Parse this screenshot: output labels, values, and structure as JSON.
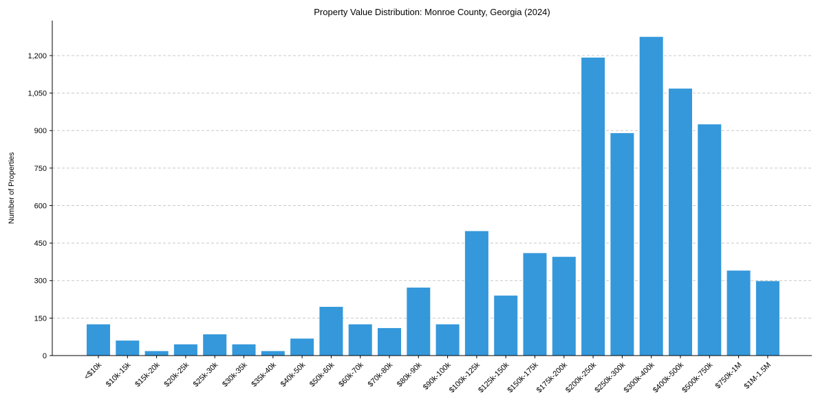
{
  "chart_data": {
    "type": "bar",
    "title": "Property Value Distribution: Monroe County, Georgia (2024)",
    "xlabel": "",
    "ylabel": "Number of Properties",
    "ylim": [
      0,
      1340
    ],
    "yticks": [
      0,
      150,
      300,
      450,
      600,
      750,
      900,
      1050,
      1200
    ],
    "ytick_labels": [
      "0",
      "150",
      "300",
      "450",
      "600",
      "750",
      "900",
      "1,050",
      "1,200"
    ],
    "grid": "y-dashed",
    "bar_color": "#3498db",
    "categories": [
      "<$10k",
      "$10k-15k",
      "$15k-20k",
      "$20k-25k",
      "$25k-30k",
      "$30k-35k",
      "$35k-40k",
      "$40k-50k",
      "$50k-60k",
      "$60k-70k",
      "$70k-80k",
      "$80k-90k",
      "$90k-100k",
      "$100k-125k",
      "$125k-150k",
      "$150k-175k",
      "$175k-200k",
      "$200k-250k",
      "$250k-300k",
      "$300k-400k",
      "$400k-500k",
      "$500k-750k",
      "$750k-1M",
      "$1M-1.5M"
    ],
    "values": [
      125,
      60,
      18,
      45,
      85,
      45,
      18,
      68,
      195,
      125,
      110,
      272,
      125,
      498,
      240,
      410,
      395,
      1192,
      890,
      1275,
      1068,
      925,
      340,
      298
    ]
  }
}
